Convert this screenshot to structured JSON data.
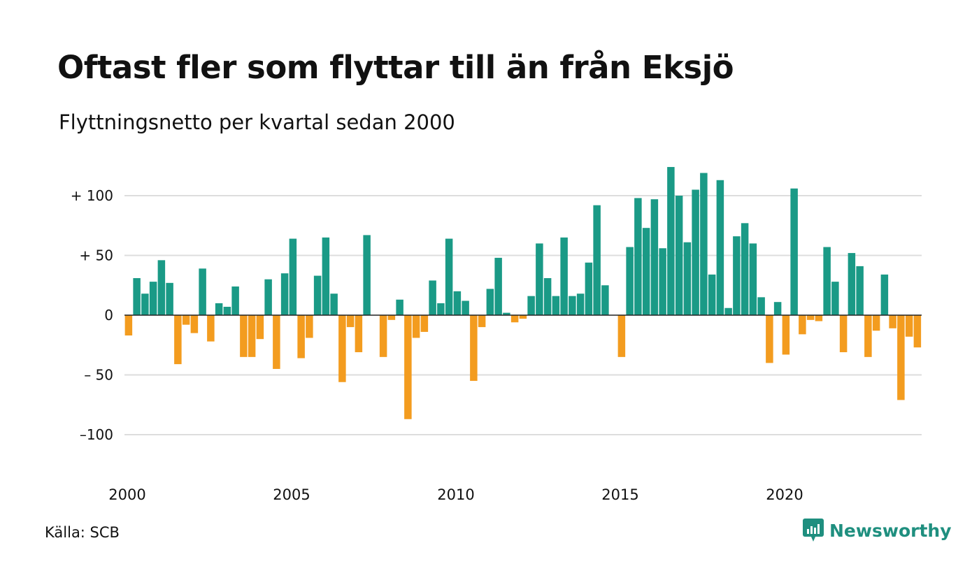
{
  "title": "Oftast fler som flyttar till än från Eksjö",
  "subtitle": "Flyttningsnetto per kvartal sedan 2000",
  "source": "Källa: SCB",
  "brand": {
    "name": "Newsworthy",
    "icon": "newsworthy-logo-icon"
  },
  "colors": {
    "positive": "#1a9a86",
    "negative": "#f39c1f",
    "grid": "#dddddd",
    "zero": "#222222"
  },
  "chart_data": {
    "type": "bar",
    "start_year": 2000,
    "periods_per_year": 4,
    "values": [
      -17,
      31,
      18,
      28,
      46,
      27,
      -41,
      -8,
      -15,
      39,
      -22,
      10,
      7,
      24,
      -35,
      -35,
      -20,
      30,
      -45,
      35,
      64,
      -36,
      -19,
      33,
      65,
      18,
      -56,
      -10,
      -31,
      67,
      0,
      -35,
      -4,
      13,
      -87,
      -19,
      -14,
      29,
      10,
      64,
      20,
      12,
      -55,
      -10,
      22,
      48,
      2,
      -6,
      -3,
      16,
      60,
      31,
      16,
      65,
      16,
      18,
      44,
      92,
      25,
      0,
      -35,
      57,
      98,
      73,
      97,
      56,
      124,
      100,
      61,
      105,
      119,
      34,
      113,
      6,
      66,
      77,
      60,
      15,
      -40,
      11,
      -33,
      106,
      -16,
      -4,
      -5,
      57,
      28,
      -31,
      52,
      41,
      -35,
      -13,
      34,
      -11,
      -71,
      -18,
      -27
    ],
    "ylim": [
      -100,
      125
    ],
    "yticks": [
      100,
      50,
      0,
      -50,
      -100
    ],
    "ytick_labels": [
      "+ 100",
      "+  50",
      "0",
      "– 50",
      "–100"
    ],
    "xticks": [
      2000,
      2005,
      2010,
      2015,
      2020
    ],
    "xtick_labels": [
      "2000",
      "2005",
      "2010",
      "2015",
      "2020"
    ],
    "grid": true
  }
}
